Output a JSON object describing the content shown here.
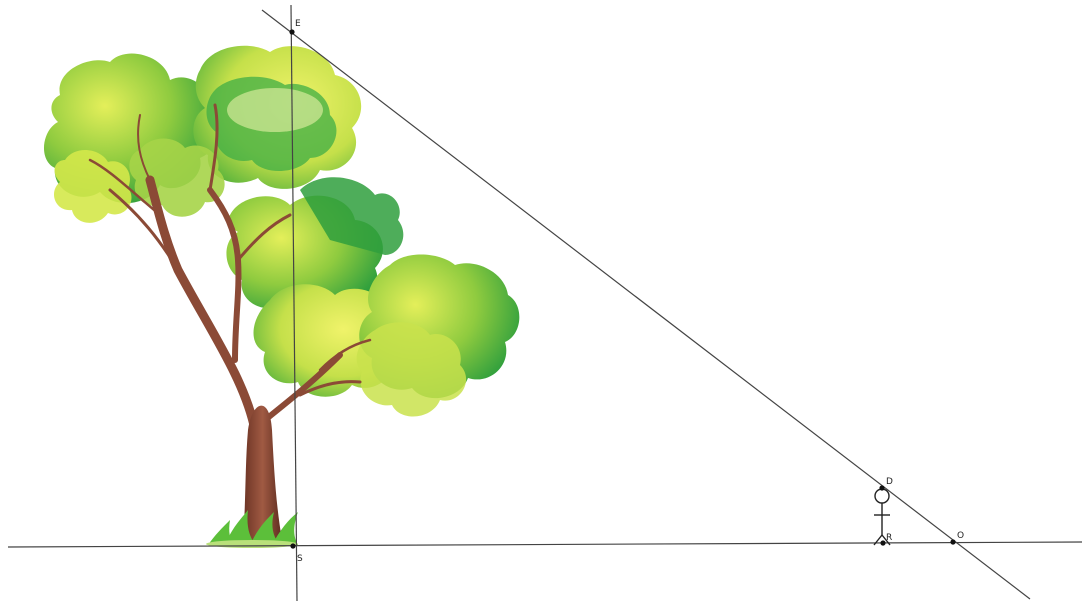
{
  "points": {
    "E": {
      "label": "E"
    },
    "S": {
      "label": "S"
    },
    "D": {
      "label": "D"
    },
    "R": {
      "label": "R"
    },
    "O": {
      "label": "O"
    }
  },
  "colors": {
    "line": "#444444",
    "point": "#111111",
    "trunk": "#8b4a36",
    "trunk_dark": "#5e2c1f",
    "leaf_dark": "#2e9e3c",
    "leaf_mid": "#78c13a",
    "leaf_light": "#d6e84a",
    "grass": "#5cbf3a"
  },
  "icons": {
    "tree": "tree-illustration",
    "person": "stick-figure-person"
  }
}
